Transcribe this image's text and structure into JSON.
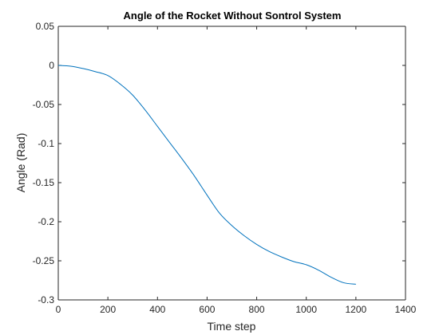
{
  "chart_data": {
    "type": "line",
    "title": "Angle of the Rocket Without Sontrol System",
    "xlabel": "Time step",
    "ylabel": "Angle (Rad)",
    "xlim": [
      0,
      1400
    ],
    "ylim": [
      -0.3,
      0.05
    ],
    "xticks": [
      "0",
      "200",
      "400",
      "600",
      "800",
      "1000",
      "1200",
      "1400"
    ],
    "yticks": [
      "0.05",
      "0",
      "-0.05",
      "-0.1",
      "-0.15",
      "-0.2",
      "-0.25",
      "-0.3"
    ],
    "grid": false,
    "legend": "none",
    "series": [
      {
        "color": "#0072BD",
        "x": [
          0,
          50,
          100,
          150,
          200,
          250,
          300,
          350,
          400,
          450,
          500,
          550,
          600,
          650,
          700,
          750,
          800,
          850,
          900,
          950,
          1000,
          1050,
          1100,
          1150,
          1200
        ],
        "y": [
          0.0,
          -0.001,
          -0.004,
          -0.008,
          -0.013,
          -0.024,
          -0.038,
          -0.057,
          -0.078,
          -0.099,
          -0.12,
          -0.142,
          -0.166,
          -0.189,
          -0.205,
          -0.218,
          -0.229,
          -0.238,
          -0.245,
          -0.251,
          -0.255,
          -0.262,
          -0.271,
          -0.278,
          -0.28
        ]
      }
    ]
  }
}
